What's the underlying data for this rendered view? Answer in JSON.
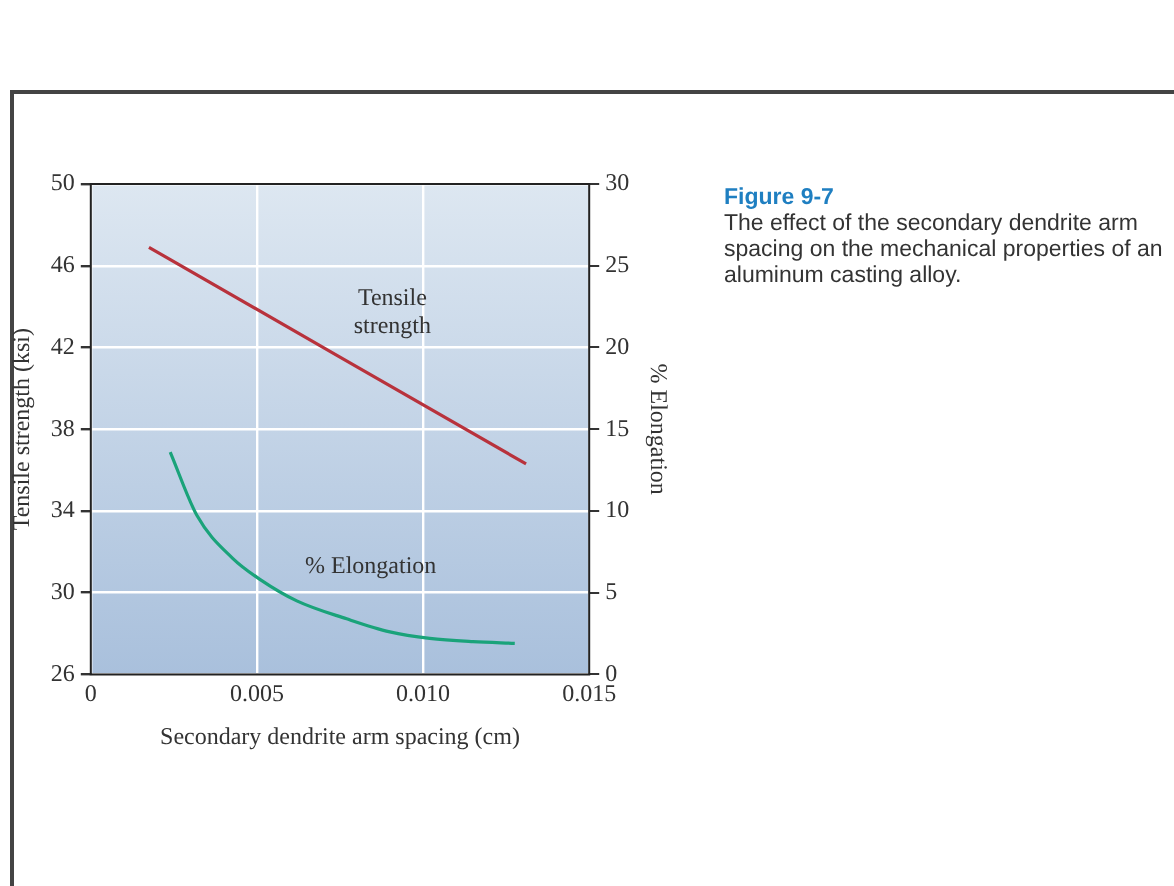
{
  "chart_data": {
    "type": "line",
    "title": "Figure 9-7",
    "subtitle": "The effect of the secondary dendrite arm spacing on the mechanical properties of an aluminum casting alloy.",
    "xlabel": "Secondary dendrite arm spacing (cm)",
    "ylabel": "Tensile strength (ksi)",
    "y2label": "% Elongation",
    "xlim": [
      0,
      0.015
    ],
    "xticks": [
      0,
      0.005,
      {
        "value": 0.01,
        "label": "0.010"
      },
      0.015
    ],
    "ylim": [
      26,
      50
    ],
    "yticks": [
      26,
      30,
      34,
      38,
      42,
      46,
      50
    ],
    "y2lim": [
      0,
      30
    ],
    "y2ticks": [
      0,
      5,
      10,
      15,
      20,
      25,
      30
    ],
    "grid": true,
    "legend": false,
    "marker": "none",
    "line_style": "solid",
    "series": [
      {
        "name": "Tensile strength",
        "color": "#b8323c",
        "x": [
          0.00175,
          0.0131
        ],
        "values": [
          46.9,
          36.3
        ]
      },
      {
        "name": "% Elongation",
        "color": "#1aa37a",
        "axis": "y2",
        "x": [
          0.00239,
          0.0032,
          0.00427,
          0.0051,
          0.0062,
          0.0077,
          0.009,
          0.0102,
          0.0115,
          0.01276
        ],
        "values": [
          13.6,
          9.7,
          7.1,
          5.8,
          4.5,
          3.4,
          2.6,
          2.2,
          2.0,
          1.9
        ]
      }
    ]
  }
}
